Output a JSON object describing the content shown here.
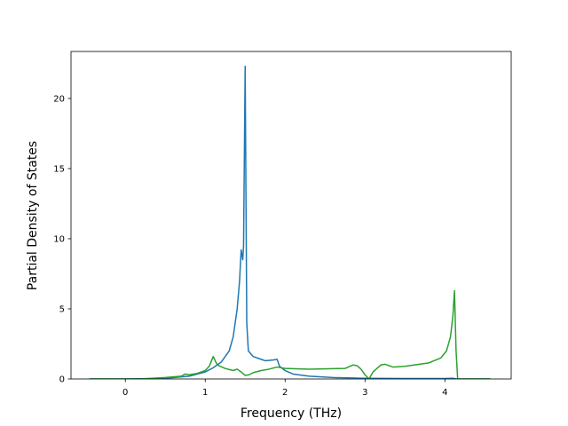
{
  "chart_data": {
    "type": "line",
    "xlabel": "Frequency (THz)",
    "ylabel": "Partial Density of States",
    "xlim": [
      -0.68,
      4.83
    ],
    "ylim": [
      0,
      23.35
    ],
    "xticks": [
      0,
      1,
      2,
      3,
      4
    ],
    "yticks": [
      0,
      5,
      10,
      15,
      20
    ],
    "grid": false,
    "series": [
      {
        "color": "#1f77b4",
        "x": [
          -0.45,
          0,
          0.5,
          0.8,
          1.0,
          1.1,
          1.2,
          1.3,
          1.35,
          1.4,
          1.43,
          1.45,
          1.47,
          1.48,
          1.5,
          1.52,
          1.54,
          1.6,
          1.7,
          1.75,
          1.85,
          1.9,
          1.93,
          2.0,
          2.1,
          2.3,
          2.6,
          3.0,
          3.5,
          4.0,
          4.1,
          4.15,
          4.57
        ],
        "values": [
          0,
          0,
          0.05,
          0.2,
          0.5,
          0.8,
          1.2,
          2.0,
          3.0,
          5.0,
          7.0,
          9.2,
          8.5,
          9.5,
          22.3,
          4.0,
          2.0,
          1.6,
          1.4,
          1.3,
          1.35,
          1.4,
          0.9,
          0.6,
          0.35,
          0.2,
          0.1,
          0.05,
          0.03,
          0.03,
          0.05,
          0,
          0
        ]
      },
      {
        "color": "#2ca02c",
        "x": [
          -0.45,
          0.2,
          0.5,
          0.7,
          0.75,
          0.8,
          0.9,
          1.0,
          1.05,
          1.1,
          1.15,
          1.25,
          1.35,
          1.4,
          1.45,
          1.5,
          1.55,
          1.6,
          1.7,
          1.8,
          1.9,
          2.0,
          2.3,
          2.75,
          2.85,
          2.9,
          2.95,
          3.0,
          3.05,
          3.1,
          3.2,
          3.25,
          3.35,
          3.5,
          3.8,
          3.95,
          4.02,
          4.07,
          4.1,
          4.12,
          4.14,
          4.16,
          4.57
        ],
        "values": [
          0,
          0,
          0.1,
          0.2,
          0.35,
          0.3,
          0.4,
          0.6,
          0.9,
          1.6,
          1.0,
          0.75,
          0.6,
          0.7,
          0.5,
          0.25,
          0.3,
          0.45,
          0.6,
          0.7,
          0.85,
          0.75,
          0.7,
          0.75,
          1.0,
          0.95,
          0.7,
          0.3,
          0.0,
          0.5,
          1.0,
          1.05,
          0.85,
          0.9,
          1.15,
          1.5,
          2.0,
          3.0,
          4.5,
          6.3,
          2.0,
          0,
          0
        ]
      }
    ]
  }
}
